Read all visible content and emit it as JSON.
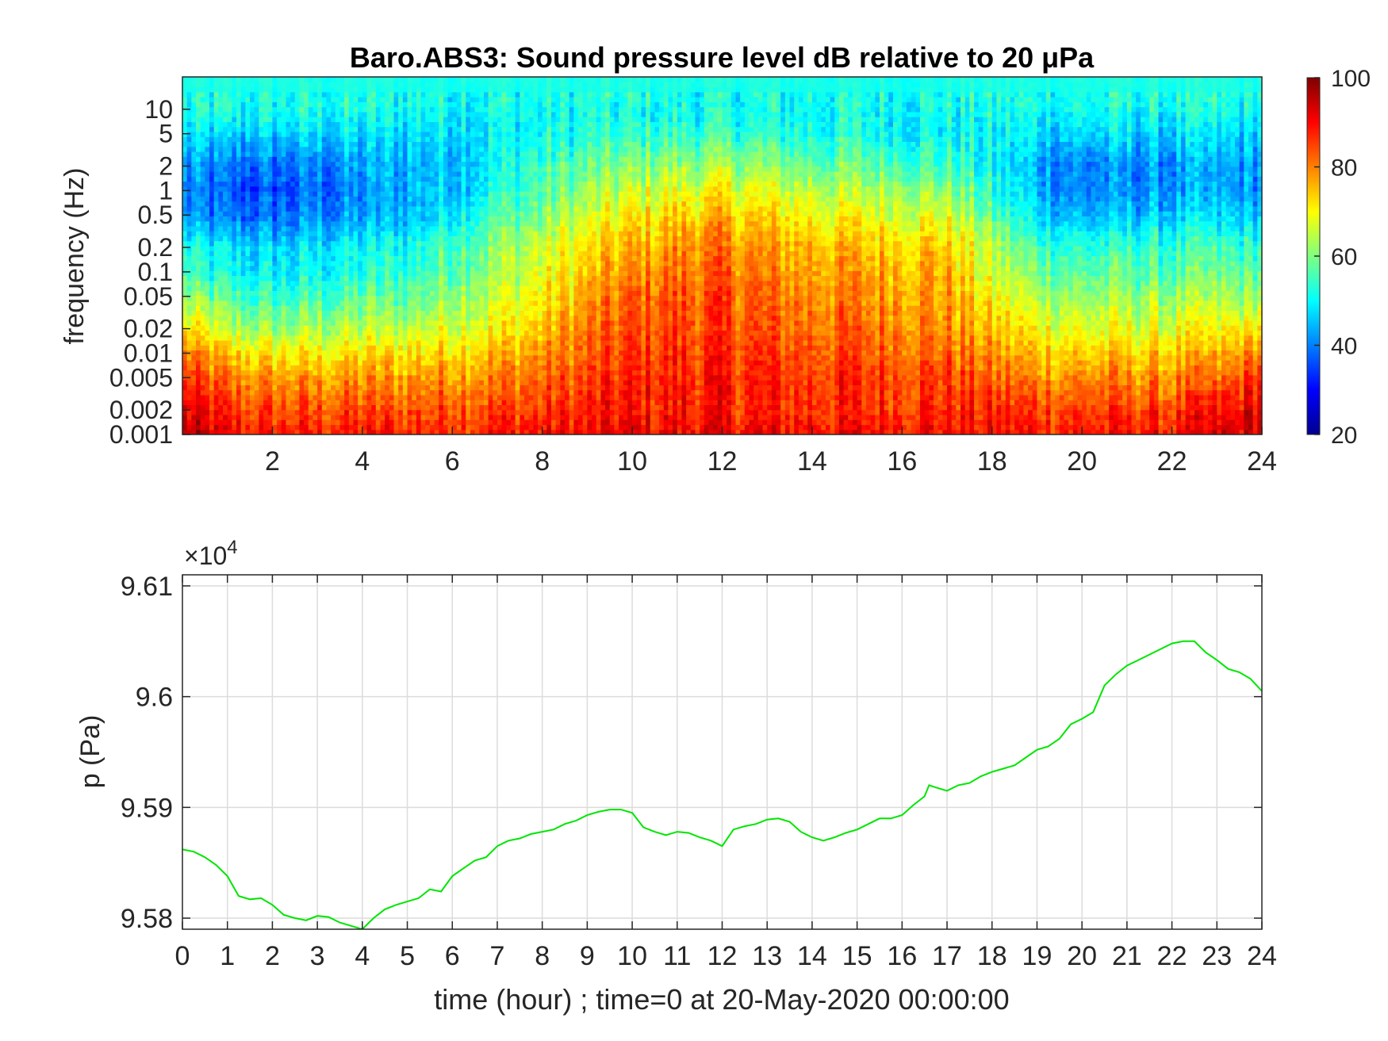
{
  "chart_data": [
    {
      "type": "heatmap",
      "title": "Baro.ABS3: Sound pressure level dB relative to 20 μPa",
      "xlabel": "",
      "ylabel": "frequency (Hz)",
      "xlim": [
        0,
        24
      ],
      "x_ticks": [
        2,
        4,
        6,
        8,
        10,
        12,
        14,
        16,
        18,
        20,
        22,
        24
      ],
      "x_tick_labels": [
        "2",
        "4",
        "6",
        "8",
        "10",
        "12",
        "14",
        "16",
        "18",
        "20",
        "22",
        "24"
      ],
      "y_scale": "log",
      "ylim": [
        0.001,
        25
      ],
      "y_ticks": [
        0.001,
        0.002,
        0.005,
        0.01,
        0.02,
        0.05,
        0.1,
        0.2,
        0.5,
        1,
        2,
        5,
        10
      ],
      "y_tick_labels": [
        "0.001",
        "0.002",
        "0.005",
        "0.01",
        "0.02",
        "0.05",
        "0.1",
        "0.2",
        "0.5",
        "1",
        "2",
        "5",
        "10"
      ],
      "colormap": "jet",
      "colorbar": {
        "limits": [
          20,
          100
        ],
        "ticks": [
          20,
          40,
          60,
          80,
          100
        ],
        "tick_labels": [
          "20",
          "40",
          "60",
          "80",
          "100"
        ]
      },
      "hours": [
        0,
        1,
        2,
        3,
        4,
        5,
        6,
        7,
        8,
        9,
        10,
        11,
        12,
        13,
        14,
        15,
        16,
        17,
        18,
        19,
        20,
        21,
        22,
        23,
        24
      ],
      "frequencies_hz": [
        0.001,
        0.002,
        0.005,
        0.01,
        0.02,
        0.05,
        0.1,
        0.2,
        0.5,
        1,
        2,
        5,
        10,
        20
      ],
      "level_db": [
        [
          95,
          92,
          85,
          80,
          72,
          62,
          55,
          52,
          42,
          40,
          42,
          47,
          51,
          52
        ],
        [
          90,
          86,
          80,
          73,
          64,
          56,
          50,
          48,
          38,
          36,
          38,
          46,
          51,
          52
        ],
        [
          88,
          84,
          78,
          71,
          62,
          54,
          49,
          47,
          38,
          36,
          38,
          46,
          51,
          52
        ],
        [
          88,
          84,
          77,
          70,
          63,
          55,
          50,
          48,
          40,
          38,
          40,
          47,
          51,
          52
        ],
        [
          88,
          84,
          78,
          72,
          65,
          57,
          52,
          50,
          42,
          40,
          42,
          47,
          51,
          52
        ],
        [
          88,
          84,
          78,
          72,
          65,
          58,
          54,
          52,
          45,
          44,
          45,
          48,
          51,
          52
        ],
        [
          88,
          85,
          79,
          74,
          68,
          63,
          59,
          57,
          50,
          47,
          46,
          49,
          51,
          52
        ],
        [
          89,
          85,
          80,
          75,
          70,
          66,
          63,
          61,
          56,
          52,
          50,
          50,
          51,
          52
        ],
        [
          89,
          86,
          82,
          78,
          74,
          70,
          68,
          66,
          60,
          57,
          54,
          51,
          51,
          52
        ],
        [
          90,
          87,
          85,
          82,
          80,
          77,
          74,
          72,
          66,
          62,
          58,
          52,
          51,
          52
        ],
        [
          91,
          88,
          87,
          85,
          84,
          82,
          78,
          76,
          70,
          66,
          60,
          53,
          51,
          52
        ],
        [
          91,
          88,
          88,
          86,
          85,
          83,
          81,
          79,
          73,
          68,
          62,
          54,
          51,
          52
        ],
        [
          91,
          88,
          88,
          86,
          85,
          84,
          82,
          80,
          75,
          70,
          63,
          54,
          51,
          52
        ],
        [
          90,
          87,
          87,
          85,
          83,
          81,
          79,
          77,
          72,
          67,
          61,
          53,
          51,
          52
        ],
        [
          90,
          87,
          86,
          84,
          82,
          80,
          78,
          76,
          70,
          65,
          59,
          52,
          51,
          52
        ],
        [
          90,
          87,
          86,
          84,
          82,
          79,
          77,
          75,
          69,
          64,
          58,
          52,
          51,
          52
        ],
        [
          90,
          87,
          86,
          83,
          81,
          79,
          77,
          75,
          68,
          64,
          57,
          51,
          51,
          52
        ],
        [
          90,
          87,
          85,
          82,
          79,
          77,
          76,
          74,
          67,
          62,
          55,
          50,
          51,
          52
        ],
        [
          89,
          86,
          82,
          78,
          74,
          70,
          66,
          64,
          57,
          53,
          50,
          49,
          51,
          52
        ],
        [
          89,
          86,
          80,
          75,
          70,
          64,
          60,
          56,
          48,
          45,
          44,
          48,
          51,
          52
        ],
        [
          89,
          85,
          79,
          74,
          68,
          62,
          57,
          53,
          44,
          40,
          40,
          47,
          51,
          52
        ],
        [
          89,
          85,
          79,
          74,
          68,
          62,
          57,
          54,
          45,
          41,
          41,
          47,
          51,
          52
        ],
        [
          89,
          85,
          79,
          74,
          68,
          62,
          57,
          54,
          46,
          42,
          41,
          47,
          51,
          52
        ],
        [
          92,
          88,
          80,
          75,
          69,
          62,
          58,
          55,
          46,
          42,
          42,
          47,
          51,
          52
        ],
        [
          95,
          93,
          88,
          80,
          72,
          63,
          57,
          54,
          46,
          42,
          43,
          47,
          51,
          52
        ]
      ]
    },
    {
      "type": "line",
      "title": "",
      "xlabel": "time (hour) ; time=0 at 20-May-2020 00:00:00",
      "ylabel": "p (Pa)",
      "y_exponent_label": "×10",
      "y_exponent_power": "4",
      "xlim": [
        0,
        24
      ],
      "ylim": [
        95790,
        96110
      ],
      "x_ticks": [
        0,
        1,
        2,
        3,
        4,
        5,
        6,
        7,
        8,
        9,
        10,
        11,
        12,
        13,
        14,
        15,
        16,
        17,
        18,
        19,
        20,
        21,
        22,
        23,
        24
      ],
      "x_tick_labels": [
        "0",
        "1",
        "2",
        "3",
        "4",
        "5",
        "6",
        "7",
        "8",
        "9",
        "10",
        "11",
        "12",
        "13",
        "14",
        "15",
        "16",
        "17",
        "18",
        "19",
        "20",
        "21",
        "22",
        "23",
        "24"
      ],
      "y_ticks": [
        95800,
        95900,
        96000,
        96100
      ],
      "y_tick_labels": [
        "9.58",
        "9.59",
        "9.6",
        "9.61"
      ],
      "grid": true,
      "line_color": "#00e600",
      "series": [
        {
          "x": [
            0,
            0.25,
            0.5,
            0.75,
            1,
            1.25,
            1.5,
            1.75,
            2,
            2.25,
            2.5,
            2.75,
            3,
            3.25,
            3.5,
            3.75,
            4,
            4.25,
            4.5,
            4.75,
            5,
            5.25,
            5.5,
            5.75,
            6,
            6.25,
            6.5,
            6.75,
            7,
            7.25,
            7.5,
            7.75,
            8,
            8.25,
            8.5,
            8.75,
            9,
            9.25,
            9.5,
            9.75,
            10,
            10.25,
            10.5,
            10.75,
            11,
            11.25,
            11.5,
            11.75,
            12,
            12.25,
            12.5,
            12.75,
            13,
            13.25,
            13.5,
            13.75,
            14,
            14.25,
            14.5,
            14.75,
            15,
            15.25,
            15.5,
            15.75,
            16,
            16.25,
            16.5,
            16.6,
            16.75,
            17,
            17.25,
            17.5,
            17.75,
            18,
            18.25,
            18.5,
            18.75,
            19,
            19.25,
            19.5,
            19.75,
            20,
            20.25,
            20.5,
            20.75,
            21,
            21.25,
            21.5,
            21.75,
            22,
            22.25,
            22.5,
            22.75,
            23,
            23.25,
            23.5,
            23.75,
            24
          ],
          "y": [
            95862,
            95860,
            95855,
            95848,
            95838,
            95820,
            95817,
            95818,
            95812,
            95803,
            95800,
            95798,
            95802,
            95801,
            95796,
            95793,
            95790,
            95800,
            95808,
            95812,
            95815,
            95818,
            95826,
            95824,
            95838,
            95845,
            95852,
            95855,
            95865,
            95870,
            95872,
            95876,
            95878,
            95880,
            95885,
            95888,
            95893,
            95896,
            95898,
            95898,
            95895,
            95882,
            95878,
            95875,
            95878,
            95877,
            95873,
            95870,
            95865,
            95880,
            95883,
            95885,
            95889,
            95890,
            95887,
            95878,
            95873,
            95870,
            95873,
            95877,
            95880,
            95885,
            95890,
            95890,
            95893,
            95902,
            95910,
            95920,
            95918,
            95915,
            95920,
            95922,
            95928,
            95932,
            95935,
            95938,
            95945,
            95952,
            95955,
            95962,
            95975,
            95980,
            95986,
            96010,
            96020,
            96028,
            96033,
            96038,
            96043,
            96048,
            96050,
            96050,
            96040,
            96033,
            96025,
            96022,
            96016,
            96005
          ]
        }
      ]
    }
  ]
}
